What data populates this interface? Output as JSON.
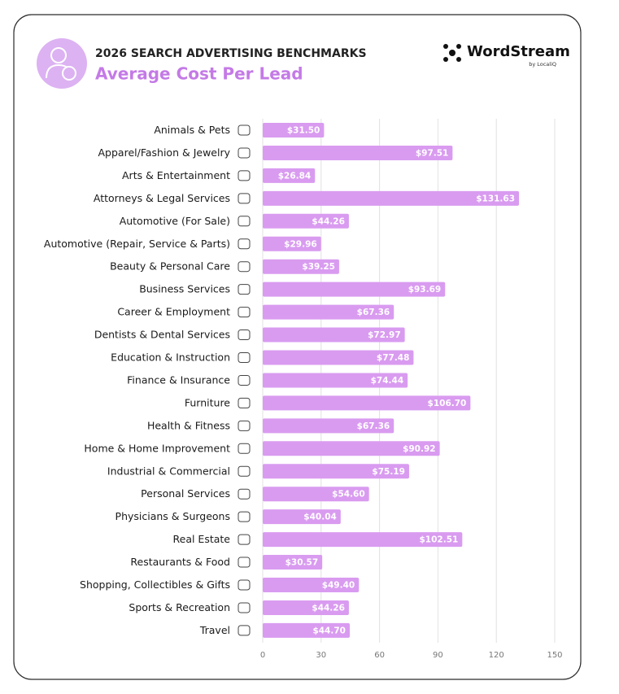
{
  "chart_data": {
    "type": "bar",
    "orientation": "horizontal",
    "title": "2026 SEARCH ADVERTISING BENCHMARKS",
    "subtitle": "Average Cost Per Lead",
    "categories": [
      "Animals & Pets",
      "Apparel/Fashion & Jewelry",
      "Arts & Entertainment",
      "Attorneys & Legal Services",
      "Automotive (For Sale)",
      "Automotive (Repair, Service & Parts)",
      "Beauty & Personal Care",
      "Business Services",
      "Career & Employment",
      "Dentists & Dental Services",
      "Education & Instruction",
      "Finance & Insurance",
      "Furniture",
      "Health & Fitness",
      "Home & Home Improvement",
      "Industrial & Commercial",
      "Personal Services",
      "Physicians & Surgeons",
      "Real Estate",
      "Restaurants & Food",
      "Shopping, Collectibles & Gifts",
      "Sports & Recreation",
      "Travel"
    ],
    "values": [
      31.5,
      97.51,
      26.84,
      131.63,
      44.26,
      29.96,
      39.25,
      93.69,
      67.36,
      72.97,
      77.48,
      74.44,
      106.7,
      67.36,
      90.92,
      75.19,
      54.6,
      40.04,
      102.51,
      30.57,
      49.4,
      44.26,
      44.7
    ],
    "value_labels": [
      "$31.50",
      "$97.51",
      "$26.84",
      "$131.63",
      "$44.26",
      "$29.96",
      "$39.25",
      "$93.69",
      "$67.36",
      "$72.97",
      "$77.48",
      "$74.44",
      "$106.70",
      "$67.36",
      "$90.92",
      "$75.19",
      "$54.60",
      "$40.04",
      "$102.51",
      "$30.57",
      "$49.40",
      "$44.26",
      "$44.70"
    ],
    "color": "#d99bf0",
    "xlim": [
      0,
      150
    ],
    "xticks": [
      0,
      30,
      60,
      90,
      120,
      150
    ],
    "grid": true
  },
  "logo": {
    "name": "WordStream",
    "byline": "by LocaliQ"
  }
}
